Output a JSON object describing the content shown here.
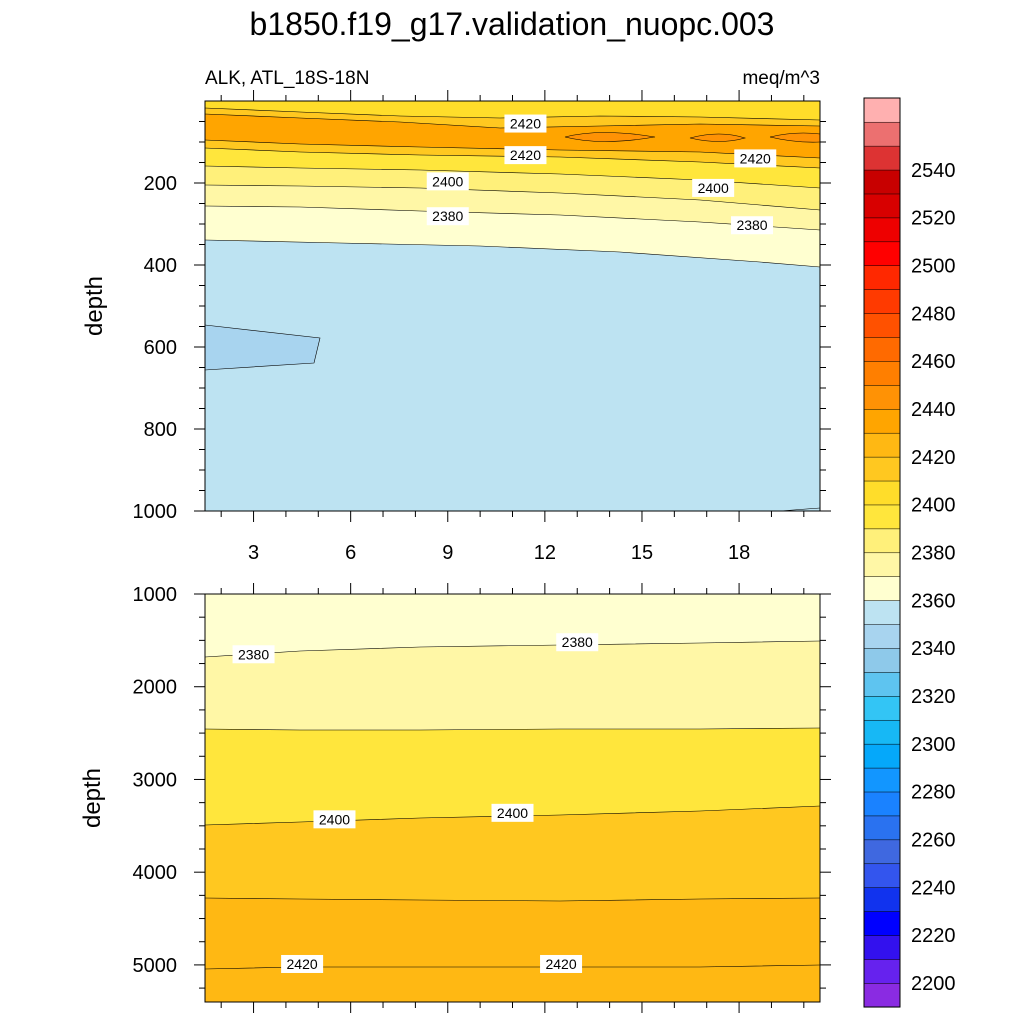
{
  "chart_data": {
    "type": "contour",
    "title": "b1850.f19_g17.validation_nuopc.003",
    "subtitle_left": "ALK, ATL_18S-18N",
    "subtitle_right": "meq/m^3",
    "ylabel": "depth",
    "x_ticks": [
      3,
      6,
      9,
      12,
      15,
      18
    ],
    "xlim": [
      1.5,
      20.5
    ],
    "colors": [
      "#8a2be2",
      "#6622ee",
      "#3311ee",
      "#0000ff",
      "#1133ee",
      "#3355ee",
      "#3f68e0",
      "#2a72f0",
      "#1a82ff",
      "#1296ff",
      "#05a8fa",
      "#17b8f5",
      "#33c5f5",
      "#5ec4f0",
      "#8ec9ea",
      "#a8d4ef",
      "#bde3f2",
      "#ffffd0",
      "#fff7a6",
      "#fff07a",
      "#ffe63c",
      "#ffdd2a",
      "#ffc820",
      "#ffb813",
      "#ffa500",
      "#ff9205",
      "#ff7f00",
      "#ff6a00",
      "#ff5100",
      "#ff3a00",
      "#ff2800",
      "#ff0000",
      "#ee0000",
      "#d80000",
      "#c80000",
      "#dd3333",
      "#ec7070",
      "#ffb0b0"
    ],
    "colorbar_labels": [
      "2200",
      "2220",
      "2240",
      "2260",
      "2280",
      "2300",
      "2320",
      "2340",
      "2360",
      "2380",
      "2400",
      "2420",
      "2440",
      "2460",
      "2480",
      "2500",
      "2520",
      "2540"
    ],
    "panels": [
      {
        "name": "upper",
        "ylim": [
          0,
          1000
        ],
        "y_ticks": [
          "200",
          "400",
          "600",
          "800",
          "1000"
        ],
        "contour_labels": [
          {
            "text": "2420",
            "x": 11.4,
            "y": 55
          },
          {
            "text": "2420",
            "x": 11.4,
            "y": 132
          },
          {
            "text": "2420",
            "x": 18.5,
            "y": 140
          },
          {
            "text": "2400",
            "x": 9.0,
            "y": 196
          },
          {
            "text": "2400",
            "x": 17.2,
            "y": 212
          },
          {
            "text": "2380",
            "x": 9.0,
            "y": 281
          },
          {
            "text": "2380",
            "x": 18.4,
            "y": 303
          }
        ]
      },
      {
        "name": "lower",
        "ylim": [
          1000,
          5400
        ],
        "y_ticks": [
          "1000",
          "2000",
          "3000",
          "4000",
          "5000"
        ],
        "contour_labels": [
          {
            "text": "2380",
            "x": 3.0,
            "y": 1650
          },
          {
            "text": "2380",
            "x": 13.0,
            "y": 1520
          },
          {
            "text": "2400",
            "x": 5.5,
            "y": 3430
          },
          {
            "text": "2400",
            "x": 11.0,
            "y": 3360
          },
          {
            "text": "2420",
            "x": 4.5,
            "y": 4990
          },
          {
            "text": "2420",
            "x": 12.5,
            "y": 4990
          }
        ]
      }
    ]
  }
}
